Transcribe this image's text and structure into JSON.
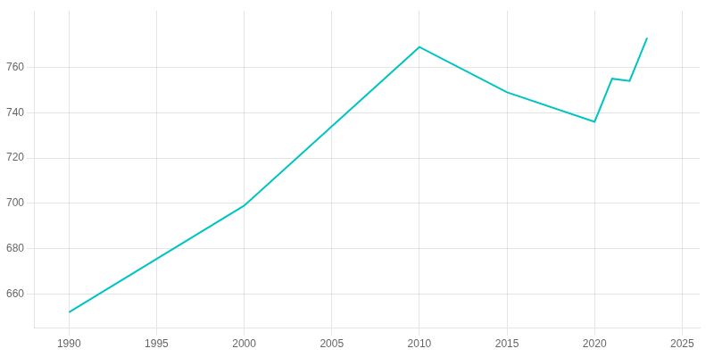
{
  "chart_data": {
    "type": "line",
    "x": [
      1990,
      2000,
      2010,
      2015,
      2020,
      2021,
      2022,
      2023
    ],
    "values": [
      652,
      699,
      769,
      749,
      736,
      755,
      754,
      773
    ],
    "color": "#00C4C4",
    "xlim": [
      1988,
      2026
    ],
    "ylim": [
      645,
      785
    ],
    "xticks": [
      1990,
      1995,
      2000,
      2005,
      2010,
      2015,
      2020,
      2025
    ],
    "yticks": [
      660,
      680,
      700,
      720,
      740,
      760
    ],
    "grid": true
  }
}
